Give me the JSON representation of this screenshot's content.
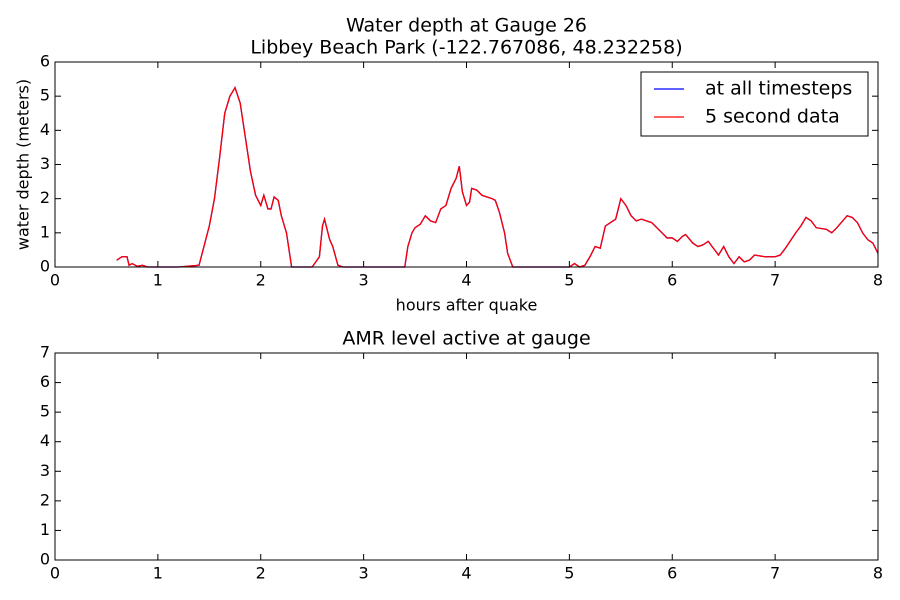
{
  "chart_data": [
    {
      "type": "line",
      "title": "Water depth at Gauge 26",
      "subtitle": "Libbey Beach Park  (-122.767086, 48.232258)",
      "xlabel": "hours after quake",
      "ylabel": "water depth (meters)",
      "xlim": [
        0,
        8
      ],
      "ylim": [
        0,
        6
      ],
      "xticks": [
        0,
        1,
        2,
        3,
        4,
        5,
        6,
        7,
        8
      ],
      "yticks": [
        0,
        1,
        2,
        3,
        4,
        5,
        6
      ],
      "legend": "upper right",
      "x": [
        0.6,
        0.65,
        0.7,
        0.72,
        0.75,
        0.8,
        0.85,
        0.9,
        1.0,
        1.2,
        1.4,
        1.5,
        1.55,
        1.6,
        1.65,
        1.7,
        1.75,
        1.8,
        1.85,
        1.9,
        1.95,
        2.0,
        2.03,
        2.07,
        2.1,
        2.13,
        2.17,
        2.2,
        2.25,
        2.3,
        2.5,
        2.57,
        2.6,
        2.62,
        2.67,
        2.7,
        2.75,
        2.8,
        3.0,
        3.4,
        3.43,
        3.47,
        3.5,
        3.55,
        3.6,
        3.65,
        3.7,
        3.75,
        3.8,
        3.85,
        3.9,
        3.93,
        3.96,
        4.0,
        4.03,
        4.05,
        4.1,
        4.15,
        4.2,
        4.25,
        4.28,
        4.32,
        4.37,
        4.4,
        4.45,
        4.6,
        5.0,
        5.05,
        5.1,
        5.15,
        5.2,
        5.25,
        5.3,
        5.35,
        5.4,
        5.45,
        5.5,
        5.55,
        5.6,
        5.65,
        5.7,
        5.75,
        5.8,
        5.85,
        5.9,
        5.95,
        6.0,
        6.05,
        6.1,
        6.13,
        6.2,
        6.25,
        6.3,
        6.35,
        6.4,
        6.45,
        6.5,
        6.55,
        6.6,
        6.65,
        6.7,
        6.75,
        6.8,
        6.9,
        7.0,
        7.05,
        7.1,
        7.2,
        7.25,
        7.3,
        7.35,
        7.4,
        7.5,
        7.55,
        7.6,
        7.7,
        7.75,
        7.8,
        7.85,
        7.9,
        7.95,
        8.0
      ],
      "series": [
        {
          "name": "at all timesteps",
          "color": "#0000ff",
          "values": [
            0.2,
            0.3,
            0.3,
            0.05,
            0.1,
            0.02,
            0.05,
            0,
            0,
            0,
            0.05,
            1.2,
            2.0,
            3.2,
            4.5,
            5.0,
            5.25,
            4.8,
            3.8,
            2.8,
            2.1,
            1.8,
            2.1,
            1.7,
            1.7,
            2.05,
            1.95,
            1.5,
            1.0,
            0,
            0,
            0.3,
            1.2,
            1.4,
            0.8,
            0.6,
            0.05,
            0,
            0,
            0,
            0.6,
            1.0,
            1.15,
            1.25,
            1.5,
            1.35,
            1.3,
            1.7,
            1.8,
            2.3,
            2.6,
            2.95,
            2.2,
            1.8,
            1.9,
            2.3,
            2.25,
            2.1,
            2.05,
            2.0,
            1.95,
            1.6,
            1.0,
            0.4,
            0,
            0,
            0,
            0.1,
            0,
            0.05,
            0.3,
            0.6,
            0.55,
            1.2,
            1.3,
            1.4,
            2.0,
            1.8,
            1.5,
            1.35,
            1.4,
            1.35,
            1.3,
            1.15,
            1.0,
            0.85,
            0.85,
            0.75,
            0.9,
            0.95,
            0.7,
            0.6,
            0.65,
            0.75,
            0.55,
            0.35,
            0.6,
            0.3,
            0.1,
            0.3,
            0.15,
            0.2,
            0.35,
            0.3,
            0.3,
            0.35,
            0.55,
            1.0,
            1.2,
            1.45,
            1.35,
            1.15,
            1.1,
            1.0,
            1.15,
            1.5,
            1.45,
            1.3,
            1.0,
            0.8,
            0.7,
            0.4
          ]
        },
        {
          "name": "5 second data",
          "color": "#ff0000",
          "values": [
            0.2,
            0.3,
            0.3,
            0.05,
            0.1,
            0.02,
            0.05,
            0,
            0,
            0,
            0.05,
            1.2,
            2.0,
            3.2,
            4.5,
            5.0,
            5.25,
            4.8,
            3.8,
            2.8,
            2.1,
            1.8,
            2.1,
            1.7,
            1.7,
            2.05,
            1.95,
            1.5,
            1.0,
            0,
            0,
            0.3,
            1.2,
            1.4,
            0.8,
            0.6,
            0.05,
            0,
            0,
            0,
            0.6,
            1.0,
            1.15,
            1.25,
            1.5,
            1.35,
            1.3,
            1.7,
            1.8,
            2.3,
            2.6,
            2.95,
            2.2,
            1.8,
            1.9,
            2.3,
            2.25,
            2.1,
            2.05,
            2.0,
            1.95,
            1.6,
            1.0,
            0.4,
            0,
            0,
            0,
            0.1,
            0,
            0.05,
            0.3,
            0.6,
            0.55,
            1.2,
            1.3,
            1.4,
            2.0,
            1.8,
            1.5,
            1.35,
            1.4,
            1.35,
            1.3,
            1.15,
            1.0,
            0.85,
            0.85,
            0.75,
            0.9,
            0.95,
            0.7,
            0.6,
            0.65,
            0.75,
            0.55,
            0.35,
            0.6,
            0.3,
            0.1,
            0.3,
            0.15,
            0.2,
            0.35,
            0.3,
            0.3,
            0.35,
            0.55,
            1.0,
            1.2,
            1.45,
            1.35,
            1.15,
            1.1,
            1.0,
            1.15,
            1.5,
            1.45,
            1.3,
            1.0,
            0.8,
            0.7,
            0.4
          ]
        }
      ]
    },
    {
      "type": "line",
      "title": "AMR level active at gauge",
      "xlim": [
        0,
        8
      ],
      "ylim": [
        0,
        7
      ],
      "xticks": [
        0,
        1,
        2,
        3,
        4,
        5,
        6,
        7,
        8
      ],
      "yticks": [
        0,
        1,
        2,
        3,
        4,
        5,
        6,
        7
      ]
    }
  ]
}
